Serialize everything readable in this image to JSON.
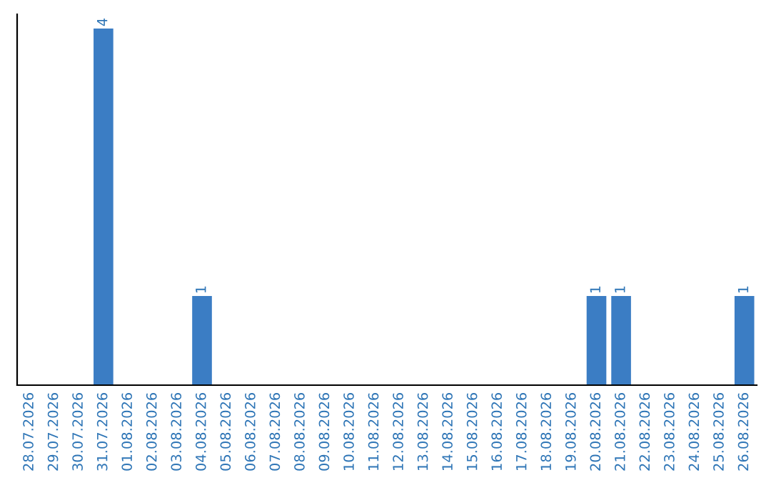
{
  "chart_data": {
    "type": "bar",
    "categories": [
      "28.07.2026",
      "29.07.2026",
      "30.07.2026",
      "31.07.2026",
      "01.08.2026",
      "02.08.2026",
      "03.08.2026",
      "04.08.2026",
      "05.08.2026",
      "06.08.2026",
      "07.08.2026",
      "08.08.2026",
      "09.08.2026",
      "10.08.2026",
      "11.08.2026",
      "12.08.2026",
      "13.08.2026",
      "14.08.2026",
      "15.08.2026",
      "16.08.2026",
      "17.08.2026",
      "18.08.2026",
      "19.08.2026",
      "20.08.2026",
      "21.08.2026",
      "22.08.2026",
      "23.08.2026",
      "24.08.2026",
      "25.08.2026",
      "26.08.2026"
    ],
    "values": [
      0,
      0,
      0,
      4,
      0,
      0,
      0,
      1,
      0,
      0,
      0,
      0,
      0,
      0,
      0,
      0,
      0,
      0,
      0,
      0,
      0,
      0,
      0,
      1,
      1,
      0,
      0,
      0,
      0,
      1
    ],
    "value_labels": [
      null,
      null,
      null,
      "4",
      null,
      null,
      null,
      "1",
      null,
      null,
      null,
      null,
      null,
      null,
      null,
      null,
      null,
      null,
      null,
      null,
      null,
      null,
      null,
      "1",
      "1",
      null,
      null,
      null,
      null,
      "1"
    ],
    "color": "#3b7dc4",
    "tick_labels": "x",
    "grid": false
  }
}
